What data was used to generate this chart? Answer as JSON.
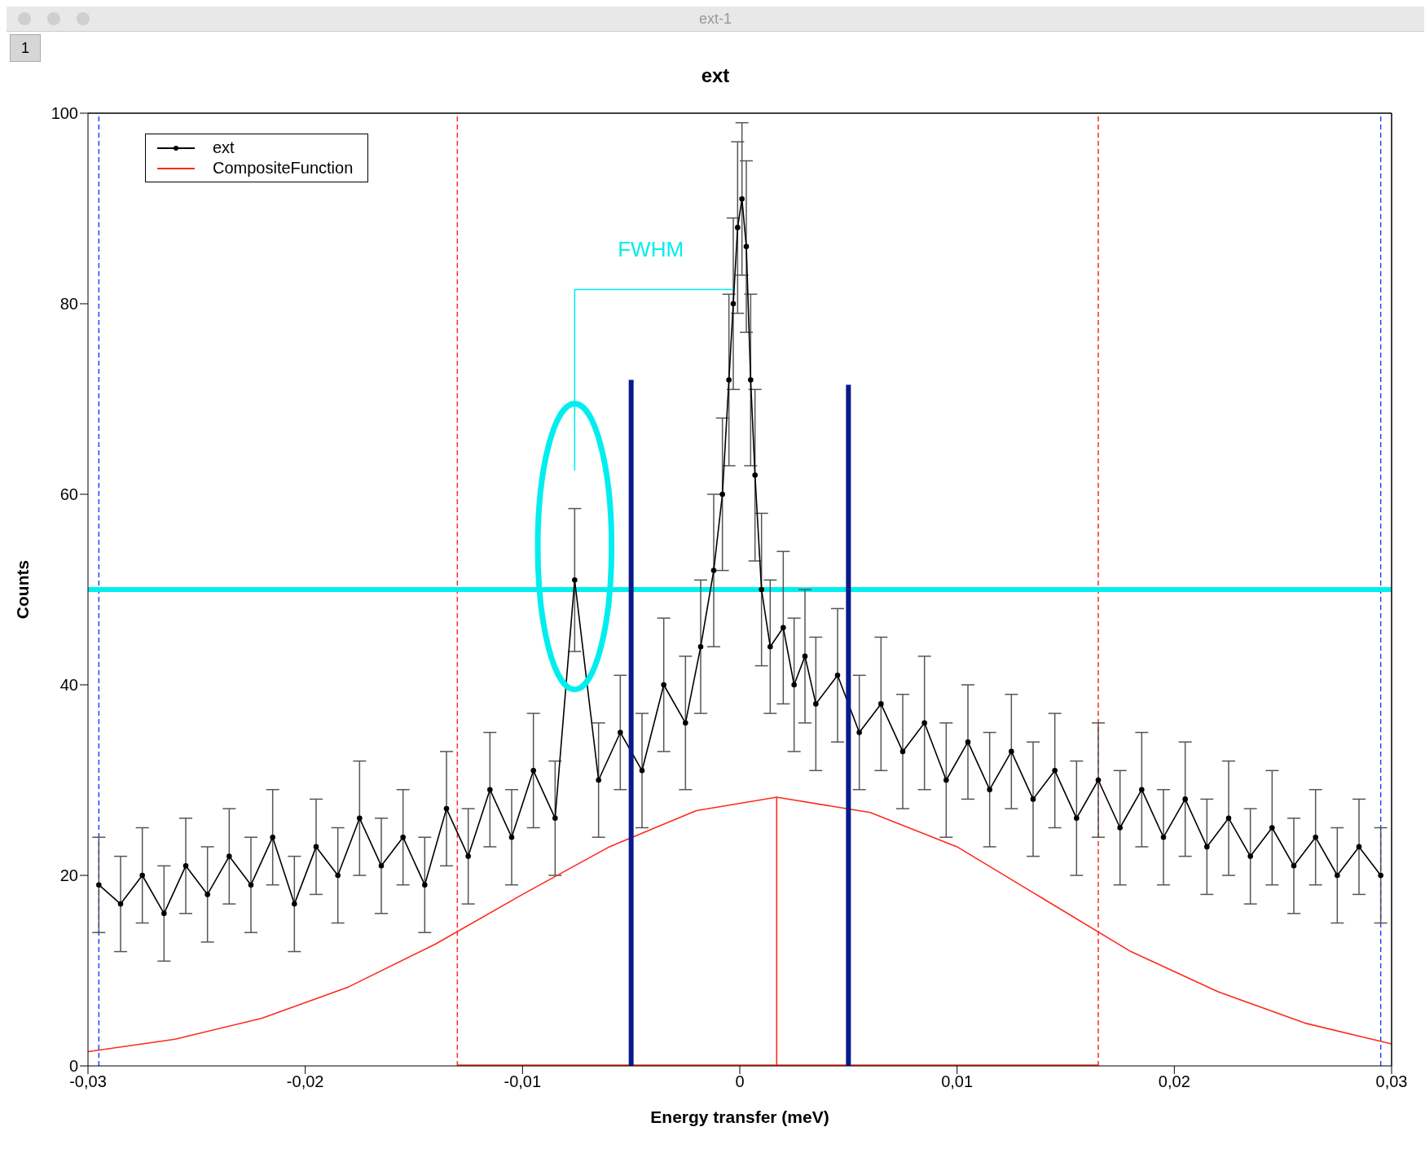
{
  "chart_data": {
    "type": "line",
    "title": "ext",
    "xlabel": "Energy transfer (meV)",
    "ylabel": "Counts",
    "xlim": [
      -0.03,
      0.03
    ],
    "xticks": [
      {
        "value": -0.03,
        "label": "-0,03"
      },
      {
        "value": -0.02,
        "label": "-0,02"
      },
      {
        "value": -0.01,
        "label": "-0,01"
      },
      0,
      {
        "value": 0.01,
        "label": "0,01"
      },
      {
        "value": 0.02,
        "label": "0,02"
      },
      {
        "value": 0.03,
        "label": "0,03"
      }
    ],
    "ylim": [
      0,
      100
    ],
    "yticks": [
      0,
      20,
      40,
      60,
      80,
      100
    ],
    "legend": "top left",
    "marker": "circle",
    "series": [
      {
        "name": "ext",
        "color": "#000000",
        "x": [
          -0.0295,
          -0.0285,
          -0.0275,
          -0.0265,
          -0.0255,
          -0.0245,
          -0.0235,
          -0.0225,
          -0.0215,
          -0.0205,
          -0.0195,
          -0.0185,
          -0.0175,
          -0.0165,
          -0.0155,
          -0.0145,
          -0.0135,
          -0.0125,
          -0.0115,
          -0.0105,
          -0.0095,
          -0.0085,
          -0.0076,
          -0.0065,
          -0.0055,
          -0.0045,
          -0.0035,
          -0.0025,
          -0.0018,
          -0.0012,
          -0.0008,
          -0.0005,
          -0.0003,
          -0.0001,
          0.0001,
          0.0003,
          0.0005,
          0.0007,
          0.001,
          0.0014,
          0.002,
          0.0025,
          0.003,
          0.0035,
          0.0045,
          0.0055,
          0.0065,
          0.0075,
          0.0085,
          0.0095,
          0.0105,
          0.0115,
          0.0125,
          0.0135,
          0.0145,
          0.0155,
          0.0165,
          0.0175,
          0.0185,
          0.0195,
          0.0205,
          0.0215,
          0.0225,
          0.0235,
          0.0245,
          0.0255,
          0.0265,
          0.0275,
          0.0285,
          0.0295
        ],
        "values": [
          19,
          17,
          20,
          16,
          21,
          18,
          22,
          19,
          24,
          17,
          23,
          20,
          26,
          21,
          24,
          19,
          27,
          22,
          29,
          24,
          31,
          26,
          51,
          30,
          35,
          31,
          40,
          36,
          44,
          52,
          60,
          72,
          80,
          88,
          91,
          86,
          72,
          62,
          50,
          44,
          46,
          40,
          43,
          38,
          41,
          35,
          38,
          33,
          36,
          30,
          34,
          29,
          33,
          28,
          31,
          26,
          30,
          25,
          29,
          24,
          28,
          23,
          26,
          22,
          25,
          21,
          24,
          20,
          23,
          20
        ],
        "errors": [
          5,
          5,
          5,
          5,
          5,
          5,
          5,
          5,
          5,
          5,
          5,
          5,
          6,
          5,
          5,
          5,
          6,
          5,
          6,
          5,
          6,
          6,
          7.5,
          6,
          6,
          6,
          7,
          7,
          7,
          8,
          8,
          9,
          9,
          9,
          8,
          9,
          9,
          9,
          8,
          7,
          8,
          7,
          7,
          7,
          7,
          6,
          7,
          6,
          7,
          6,
          6,
          6,
          6,
          6,
          6,
          6,
          6,
          6,
          6,
          5,
          6,
          5,
          6,
          5,
          6,
          5,
          5,
          5,
          5,
          5
        ]
      },
      {
        "name": "CompositeFunction",
        "color": "#ff2a1a",
        "marker": "none",
        "x": [
          -0.03,
          -0.026,
          -0.022,
          -0.018,
          -0.014,
          -0.01,
          -0.006,
          -0.002,
          0.0017,
          0.006,
          0.01,
          0.014,
          0.018,
          0.022,
          0.026,
          0.03
        ],
        "values": [
          1.5,
          2.8,
          5,
          8.3,
          12.8,
          18,
          23,
          26.8,
          28.2,
          26.6,
          23,
          17.5,
          12,
          7.8,
          4.5,
          2.3
        ]
      },
      {
        "color": "#ff2a1a",
        "marker": "none",
        "x": [
          0.0017,
          0.0017
        ],
        "values": [
          0,
          28.2
        ]
      },
      {
        "color": "#ff2a1a",
        "marker": "none",
        "x": [
          -0.013,
          0.0165
        ],
        "values": [
          0,
          0
        ]
      },
      {
        "color": "#0a1a8c",
        "marker": "none",
        "x": [
          -0.005,
          -0.005
        ],
        "values": [
          0,
          72
        ]
      },
      {
        "color": "#0a1a8c",
        "marker": "none",
        "x": [
          0.005,
          0.005
        ],
        "values": [
          0,
          71.5
        ]
      },
      {
        "color": "#00eeee",
        "marker": "none",
        "x": [
          -0.0076,
          -0.0076,
          -0.0003
        ],
        "values": [
          62.5,
          81.5,
          81.5
        ]
      }
    ],
    "ref_lines": [
      {
        "axis": "x",
        "value": -0.0295,
        "color": "#2244ff",
        "line_style": "dashed"
      },
      {
        "axis": "x",
        "value": 0.0295,
        "color": "#2244ff",
        "line_style": "dashed"
      },
      {
        "axis": "x",
        "value": -0.013,
        "color": "#ff2a1a",
        "line_style": "dashed"
      },
      {
        "axis": "x",
        "value": 0.0165,
        "color": "#ff2a1a",
        "line_style": "dashed"
      },
      {
        "axis": "y",
        "value": 50,
        "color": "#00eeee",
        "line_style": "solid"
      }
    ],
    "annotations": [
      "FWHM",
      "ext-1",
      "1"
    ]
  }
}
